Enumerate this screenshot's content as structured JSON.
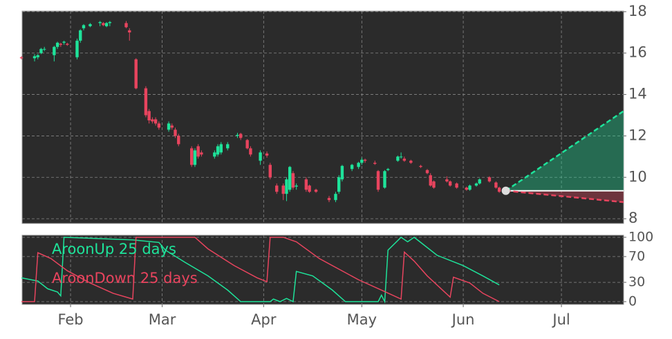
{
  "chart_data": [
    {
      "type": "candlestick",
      "up_color": "#1ee39a",
      "down_color": "#e8445e",
      "grid": true,
      "xlim": [
        17.2,
        201
      ],
      "ylim": [
        7.77,
        18.03
      ],
      "yticks": [
        8,
        10,
        12,
        14,
        16,
        18
      ],
      "x": [
        17,
        21,
        22,
        23,
        24,
        27,
        28,
        29,
        30,
        31,
        34,
        35,
        36,
        38,
        41,
        42,
        43,
        44,
        49,
        50,
        52,
        55,
        56,
        57,
        58,
        59,
        62,
        63,
        64,
        65,
        69,
        70,
        71,
        72,
        76,
        77,
        78,
        80,
        83,
        84,
        86,
        87,
        90,
        92,
        93,
        95,
        97,
        98,
        99,
        100,
        101,
        104,
        105,
        107,
        111,
        113,
        114,
        115,
        118,
        120,
        121,
        122,
        125,
        126,
        128,
        129,
        132,
        133,
        134,
        136,
        139,
        141,
        142,
        143,
        147,
        148,
        150,
        153,
        154,
        156,
        157,
        160,
        162,
        163
      ],
      "open": [
        15.8,
        15.75,
        15.8,
        16.0,
        16.2,
        15.9,
        16.3,
        16.45,
        16.5,
        16.45,
        15.8,
        16.6,
        17.2,
        17.3,
        17.45,
        17.45,
        17.3,
        17.45,
        17.45,
        17.1,
        15.7,
        14.3,
        13.2,
        12.8,
        12.8,
        12.6,
        12.3,
        12.5,
        12.3,
        12.0,
        11.4,
        10.6,
        11.5,
        11.2,
        11.0,
        11.1,
        11.2,
        11.4,
        12.0,
        12.1,
        11.8,
        11.4,
        10.8,
        11.15,
        10.6,
        9.6,
        9.6,
        9.2,
        9.4,
        10.2,
        9.55,
        9.9,
        9.6,
        9.4,
        9.0,
        8.9,
        9.3,
        9.9,
        10.4,
        10.5,
        10.7,
        10.85,
        10.7,
        10.3,
        9.5,
        10.35,
        10.8,
        11.0,
        10.9,
        10.8,
        10.55,
        10.35,
        10.1,
        9.8,
        9.9,
        9.8,
        9.7,
        9.5,
        9.4,
        9.6,
        9.7,
        10.0,
        9.75,
        9.5
      ],
      "high": [
        15.85,
        15.95,
        15.95,
        16.25,
        16.3,
        16.35,
        16.55,
        16.5,
        16.6,
        16.5,
        16.7,
        17.15,
        17.4,
        17.45,
        17.55,
        17.5,
        17.5,
        17.55,
        17.55,
        17.2,
        15.75,
        14.4,
        13.3,
        12.9,
        12.9,
        12.7,
        12.7,
        12.6,
        12.4,
        12.1,
        11.5,
        11.4,
        11.6,
        11.3,
        11.3,
        11.6,
        11.7,
        11.7,
        12.15,
        12.15,
        11.85,
        11.5,
        11.3,
        11.25,
        10.7,
        9.7,
        9.7,
        10.0,
        10.55,
        10.3,
        9.7,
        10.0,
        9.65,
        9.45,
        9.1,
        9.3,
        10.1,
        10.6,
        10.65,
        10.75,
        10.95,
        10.9,
        10.8,
        10.35,
        10.35,
        10.45,
        11.05,
        11.2,
        11.0,
        10.85,
        10.6,
        10.4,
        10.2,
        9.85,
        10.05,
        9.85,
        9.75,
        9.55,
        9.65,
        9.75,
        9.95,
        10.05,
        9.8,
        9.55
      ],
      "low": [
        15.7,
        15.6,
        15.7,
        15.95,
        16.1,
        15.6,
        16.2,
        16.3,
        16.4,
        16.35,
        15.7,
        16.5,
        17.1,
        17.25,
        17.3,
        17.3,
        17.25,
        17.3,
        17.2,
        16.6,
        14.25,
        12.9,
        12.6,
        12.6,
        12.5,
        12.3,
        12.2,
        12.3,
        11.9,
        11.5,
        10.5,
        10.5,
        10.9,
        11.0,
        10.9,
        11.0,
        11.1,
        11.3,
        11.9,
        11.8,
        11.35,
        11.0,
        10.6,
        10.95,
        9.9,
        9.2,
        8.9,
        8.85,
        9.3,
        9.4,
        9.4,
        9.3,
        9.25,
        9.25,
        8.8,
        8.8,
        9.2,
        9.8,
        10.3,
        10.4,
        10.6,
        10.7,
        10.6,
        9.3,
        9.45,
        10.3,
        10.75,
        10.9,
        10.75,
        10.65,
        10.45,
        10.15,
        9.55,
        9.45,
        9.75,
        9.55,
        9.45,
        9.35,
        9.35,
        9.55,
        9.65,
        9.75,
        9.45,
        9.25
      ],
      "close": [
        15.75,
        15.85,
        15.9,
        16.2,
        16.2,
        16.3,
        16.5,
        16.4,
        16.55,
        16.4,
        16.6,
        17.1,
        17.35,
        17.4,
        17.5,
        17.35,
        17.45,
        17.5,
        17.25,
        17.0,
        14.3,
        13.0,
        12.75,
        12.7,
        12.6,
        12.4,
        12.6,
        12.4,
        12.0,
        11.6,
        10.6,
        11.3,
        11.0,
        11.1,
        11.2,
        11.5,
        11.6,
        11.6,
        12.05,
        11.9,
        11.4,
        11.1,
        11.2,
        11.05,
        10.0,
        9.3,
        9.2,
        9.9,
        10.5,
        9.5,
        9.6,
        9.4,
        9.3,
        9.3,
        8.9,
        9.2,
        10.0,
        10.55,
        10.6,
        10.7,
        10.85,
        10.8,
        10.65,
        9.4,
        10.3,
        10.4,
        11.0,
        11.0,
        10.8,
        10.7,
        10.5,
        10.2,
        9.6,
        9.5,
        9.8,
        9.6,
        9.5,
        9.4,
        9.6,
        9.7,
        9.9,
        9.8,
        9.5,
        9.3
      ],
      "forecast": {
        "x": [
          165,
          201
        ],
        "upper": [
          9.35,
          13.2
        ],
        "middle": [
          9.35,
          9.35
        ],
        "lower": [
          9.35,
          8.8
        ],
        "upper_color": "#1ee39a",
        "lower_color": "#e8445e",
        "middle_color": "#ffffff"
      }
    },
    {
      "type": "line",
      "xlim": [
        17.2,
        201
      ],
      "ylim": [
        -4.3,
        103.2
      ],
      "yticks": [
        0,
        30,
        70,
        100
      ],
      "grid": true,
      "xticks": [
        {
          "value": 32,
          "label": "Feb"
        },
        {
          "value": 60,
          "label": "Mar"
        },
        {
          "value": 91,
          "label": "Apr"
        },
        {
          "value": 121,
          "label": "May"
        },
        {
          "value": 152,
          "label": "Jun"
        },
        {
          "value": 182,
          "label": "Jul"
        }
      ],
      "series": [
        {
          "name": "AroonUp 25 days",
          "color": "#1ee39a",
          "x": [
            17,
            22,
            25,
            28,
            29,
            30,
            51,
            59,
            61,
            67,
            74,
            80,
            84,
            93,
            94,
            96,
            98,
            100,
            101,
            106,
            112,
            116,
            126,
            127,
            128,
            129,
            133,
            135,
            137,
            144,
            152,
            158,
            163
          ],
          "values": [
            37,
            32,
            20,
            15,
            9,
            100,
            96,
            92,
            80,
            61,
            40,
            18,
            0,
            0,
            4,
            0,
            5,
            0,
            47,
            40,
            18,
            0,
            0,
            10,
            0,
            80,
            100,
            93,
            100,
            72,
            56,
            40,
            26
          ]
        },
        {
          "name": "AroonDown 25 days",
          "color": "#e8445e",
          "x": [
            17,
            21,
            22,
            26,
            31,
            38,
            45,
            51,
            52,
            70,
            74,
            82,
            89,
            92,
            93,
            97,
            101,
            108,
            116,
            120,
            127,
            133,
            134,
            137,
            141,
            148,
            149,
            154,
            158,
            163
          ],
          "values": [
            0,
            0,
            76,
            67,
            48,
            29,
            13,
            4,
            100,
            100,
            82,
            56,
            37,
            31,
            100,
            100,
            93,
            67,
            45,
            34,
            18,
            4,
            77,
            63,
            40,
            7,
            38,
            29,
            13,
            0
          ]
        }
      ]
    }
  ]
}
